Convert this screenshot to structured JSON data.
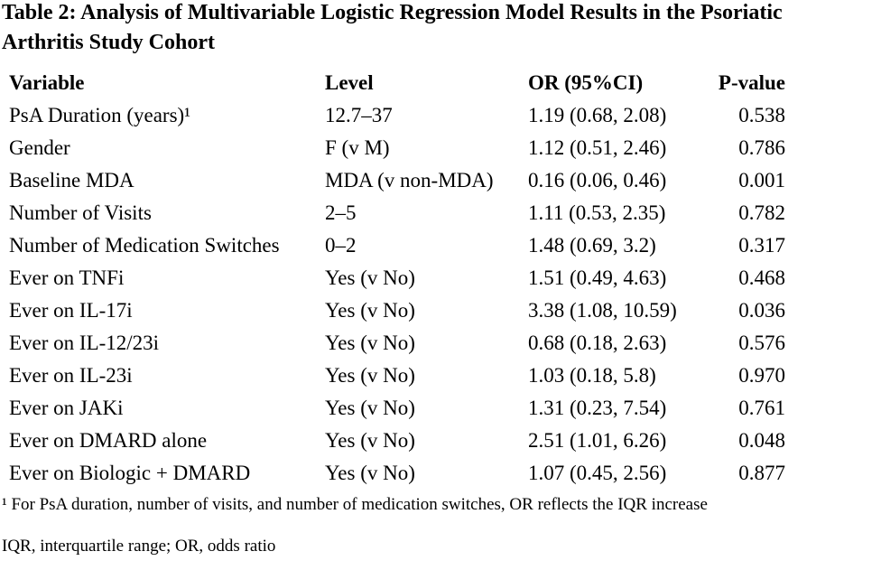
{
  "page": {
    "background_color": "#ffffff",
    "text_color": "#000000"
  },
  "title": "Table 2: Analysis of Multivariable Logistic Regression Model Results in the Psoriatic Arthritis Study Cohort",
  "table": {
    "headers": {
      "variable": "Variable",
      "level": "Level",
      "or_ci": "OR (95%CI)",
      "p_value": "P-value"
    },
    "rows": [
      {
        "variable": "PsA Duration (years)¹",
        "level": "12.7–37",
        "or_ci": "1.19 (0.68, 2.08)",
        "p_value": "0.538"
      },
      {
        "variable": "Gender",
        "level": "F (v M)",
        "or_ci": "1.12 (0.51, 2.46)",
        "p_value": "0.786"
      },
      {
        "variable": "Baseline MDA",
        "level": "MDA (v non-MDA)",
        "or_ci": "0.16 (0.06, 0.46)",
        "p_value": "0.001"
      },
      {
        "variable": "Number of Visits",
        "level": "2–5",
        "or_ci": "1.11 (0.53, 2.35)",
        "p_value": "0.782"
      },
      {
        "variable": "Number of Medication Switches",
        "level": "0–2",
        "or_ci": "1.48 (0.69, 3.2)",
        "p_value": "0.317"
      },
      {
        "variable": "Ever on TNFi",
        "level": "Yes (v No)",
        "or_ci": "1.51 (0.49, 4.63)",
        "p_value": "0.468"
      },
      {
        "variable": "Ever on IL-17i",
        "level": "Yes (v No)",
        "or_ci": "3.38 (1.08, 10.59)",
        "p_value": "0.036"
      },
      {
        "variable": "Ever on IL-12/23i",
        "level": "Yes (v No)",
        "or_ci": "0.68 (0.18, 2.63)",
        "p_value": "0.576"
      },
      {
        "variable": "Ever on IL-23i",
        "level": "Yes (v No)",
        "or_ci": "1.03 (0.18, 5.8)",
        "p_value": "0.970"
      },
      {
        "variable": "Ever on JAKi",
        "level": "Yes (v No)",
        "or_ci": "1.31 (0.23, 7.54)",
        "p_value": "0.761"
      },
      {
        "variable": "Ever on DMARD alone",
        "level": "Yes (v No)",
        "or_ci": "2.51 (1.01, 6.26)",
        "p_value": "0.048"
      },
      {
        "variable": "Ever on Biologic + DMARD",
        "level": "Yes (v No)",
        "or_ci": "1.07 (0.45, 2.56)",
        "p_value": "0.877"
      }
    ]
  },
  "footnotes": [
    "¹ For PsA duration, number of visits, and number of medication switches, OR reflects the IQR increase",
    "IQR, interquartile range; OR, odds ratio"
  ]
}
